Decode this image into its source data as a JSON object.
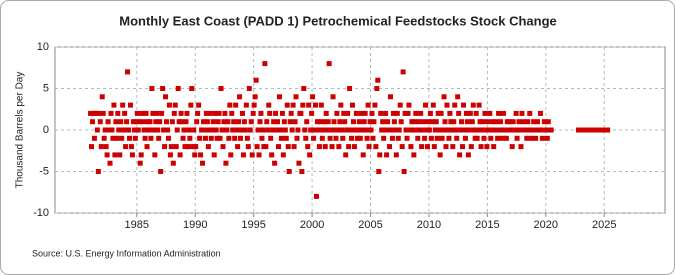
{
  "chart_data": {
    "type": "scatter",
    "title": "Monthly East Coast (PADD 1) Petrochemical Feedstocks Stock Change",
    "y_label": "Thousand Barrels per Day",
    "source": "Source: U.S. Energy Information Administration",
    "color": "#cc0000",
    "grid": true,
    "xlim": [
      1978,
      2030.2
    ],
    "xticks": [
      1985,
      1990,
      1995,
      2000,
      2005,
      2010,
      2015,
      2020,
      2025
    ],
    "ylim": [
      -10,
      10
    ],
    "yticks": [
      -10,
      -5,
      0,
      5,
      10
    ],
    "x": [
      "1981-01",
      "1981-02",
      "1981-03",
      "1981-04",
      "1981-05",
      "1981-06",
      "1981-07",
      "1981-08",
      "1981-09",
      "1981-10",
      "1981-11",
      "1981-12",
      "1982-01",
      "1982-02",
      "1982-03",
      "1982-04",
      "1982-05",
      "1982-06",
      "1982-07",
      "1982-08",
      "1982-09",
      "1982-10",
      "1982-11",
      "1982-12",
      "1983-01",
      "1983-02",
      "1983-03",
      "1983-04",
      "1983-05",
      "1983-06",
      "1983-07",
      "1983-08",
      "1983-09",
      "1983-10",
      "1983-11",
      "1983-12",
      "1984-01",
      "1984-02",
      "1984-03",
      "1984-04",
      "1984-05",
      "1984-06",
      "1984-07",
      "1984-08",
      "1984-09",
      "1984-10",
      "1984-11",
      "1984-12",
      "1985-01",
      "1985-02",
      "1985-03",
      "1985-04",
      "1985-05",
      "1985-06",
      "1985-07",
      "1985-08",
      "1985-09",
      "1985-10",
      "1985-11",
      "1985-12",
      "1986-01",
      "1986-02",
      "1986-03",
      "1986-04",
      "1986-05",
      "1986-06",
      "1986-07",
      "1986-08",
      "1986-09",
      "1986-10",
      "1986-11",
      "1986-12",
      "1987-01",
      "1987-02",
      "1987-03",
      "1987-04",
      "1987-05",
      "1987-06",
      "1987-07",
      "1987-08",
      "1987-09",
      "1987-10",
      "1987-11",
      "1987-12",
      "1988-01",
      "1988-02",
      "1988-03",
      "1988-04",
      "1988-05",
      "1988-06",
      "1988-07",
      "1988-08",
      "1988-09",
      "1988-10",
      "1988-11",
      "1988-12",
      "1989-01",
      "1989-02",
      "1989-03",
      "1989-04",
      "1989-05",
      "1989-06",
      "1989-07",
      "1989-08",
      "1989-09",
      "1989-10",
      "1989-11",
      "1989-12",
      "1990-01",
      "1990-02",
      "1990-03",
      "1990-04",
      "1990-05",
      "1990-06",
      "1990-07",
      "1990-08",
      "1990-09",
      "1990-10",
      "1990-11",
      "1990-12",
      "1991-01",
      "1991-02",
      "1991-03",
      "1991-04",
      "1991-05",
      "1991-06",
      "1991-07",
      "1991-08",
      "1991-09",
      "1991-10",
      "1991-11",
      "1991-12",
      "1992-01",
      "1992-02",
      "1992-03",
      "1992-04",
      "1992-05",
      "1992-06",
      "1992-07",
      "1992-08",
      "1992-09",
      "1992-10",
      "1992-11",
      "1992-12",
      "1993-01",
      "1993-02",
      "1993-03",
      "1993-04",
      "1993-05",
      "1993-06",
      "1993-07",
      "1993-08",
      "1993-09",
      "1993-10",
      "1993-11",
      "1993-12",
      "1994-01",
      "1994-02",
      "1994-03",
      "1994-04",
      "1994-05",
      "1994-06",
      "1994-07",
      "1994-08",
      "1994-09",
      "1994-10",
      "1994-11",
      "1994-12",
      "1995-01",
      "1995-02",
      "1995-03",
      "1995-04",
      "1995-05",
      "1995-06",
      "1995-07",
      "1995-08",
      "1995-09",
      "1995-10",
      "1995-11",
      "1995-12",
      "1996-01",
      "1996-02",
      "1996-03",
      "1996-04",
      "1996-05",
      "1996-06",
      "1996-07",
      "1996-08",
      "1996-09",
      "1996-10",
      "1996-11",
      "1996-12",
      "1997-01",
      "1997-02",
      "1997-03",
      "1997-04",
      "1997-05",
      "1997-06",
      "1997-07",
      "1997-08",
      "1997-09",
      "1997-10",
      "1997-11",
      "1997-12",
      "1998-01",
      "1998-02",
      "1998-03",
      "1998-04",
      "1998-05",
      "1998-06",
      "1998-07",
      "1998-08",
      "1998-09",
      "1998-10",
      "1998-11",
      "1998-12",
      "1999-01",
      "1999-02",
      "1999-03",
      "1999-04",
      "1999-05",
      "1999-06",
      "1999-07",
      "1999-08",
      "1999-09",
      "1999-10",
      "1999-11",
      "1999-12",
      "2000-01",
      "2000-02",
      "2000-03",
      "2000-04",
      "2000-05",
      "2000-06",
      "2000-07",
      "2000-08",
      "2000-09",
      "2000-10",
      "2000-11",
      "2000-12",
      "2001-01",
      "2001-02",
      "2001-03",
      "2001-04",
      "2001-05",
      "2001-06",
      "2001-07",
      "2001-08",
      "2001-09",
      "2001-10",
      "2001-11",
      "2001-12",
      "2002-01",
      "2002-02",
      "2002-03",
      "2002-04",
      "2002-05",
      "2002-06",
      "2002-07",
      "2002-08",
      "2002-09",
      "2002-10",
      "2002-11",
      "2002-12",
      "2003-01",
      "2003-02",
      "2003-03",
      "2003-04",
      "2003-05",
      "2003-06",
      "2003-07",
      "2003-08",
      "2003-09",
      "2003-10",
      "2003-11",
      "2003-12",
      "2004-01",
      "2004-02",
      "2004-03",
      "2004-04",
      "2004-05",
      "2004-06",
      "2004-07",
      "2004-08",
      "2004-09",
      "2004-10",
      "2004-11",
      "2004-12",
      "2005-01",
      "2005-02",
      "2005-03",
      "2005-04",
      "2005-05",
      "2005-06",
      "2005-07",
      "2005-08",
      "2005-09",
      "2005-10",
      "2005-11",
      "2005-12",
      "2006-01",
      "2006-02",
      "2006-03",
      "2006-04",
      "2006-05",
      "2006-06",
      "2006-07",
      "2006-08",
      "2006-09",
      "2006-10",
      "2006-11",
      "2006-12",
      "2007-01",
      "2007-02",
      "2007-03",
      "2007-04",
      "2007-05",
      "2007-06",
      "2007-07",
      "2007-08",
      "2007-09",
      "2007-10",
      "2007-11",
      "2007-12",
      "2008-01",
      "2008-02",
      "2008-03",
      "2008-04",
      "2008-05",
      "2008-06",
      "2008-07",
      "2008-08",
      "2008-09",
      "2008-10",
      "2008-11",
      "2008-12",
      "2009-01",
      "2009-02",
      "2009-03",
      "2009-04",
      "2009-05",
      "2009-06",
      "2009-07",
      "2009-08",
      "2009-09",
      "2009-10",
      "2009-11",
      "2009-12",
      "2010-01",
      "2010-02",
      "2010-03",
      "2010-04",
      "2010-05",
      "2010-06",
      "2010-07",
      "2010-08",
      "2010-09",
      "2010-10",
      "2010-11",
      "2010-12",
      "2011-01",
      "2011-02",
      "2011-03",
      "2011-04",
      "2011-05",
      "2011-06",
      "2011-07",
      "2011-08",
      "2011-09",
      "2011-10",
      "2011-11",
      "2011-12",
      "2012-01",
      "2012-02",
      "2012-03",
      "2012-04",
      "2012-05",
      "2012-06",
      "2012-07",
      "2012-08",
      "2012-09",
      "2012-10",
      "2012-11",
      "2012-12",
      "2013-01",
      "2013-02",
      "2013-03",
      "2013-04",
      "2013-05",
      "2013-06",
      "2013-07",
      "2013-08",
      "2013-09",
      "2013-10",
      "2013-11",
      "2013-12",
      "2014-01",
      "2014-02",
      "2014-03",
      "2014-04",
      "2014-05",
      "2014-06",
      "2014-07",
      "2014-08",
      "2014-09",
      "2014-10",
      "2014-11",
      "2014-12",
      "2015-01",
      "2015-02",
      "2015-03",
      "2015-04",
      "2015-05",
      "2015-06",
      "2015-07",
      "2015-08",
      "2015-09",
      "2015-10",
      "2015-11",
      "2015-12",
      "2016-01",
      "2016-02",
      "2016-03",
      "2016-04",
      "2016-05",
      "2016-06",
      "2016-07",
      "2016-08",
      "2016-09",
      "2016-10",
      "2016-11",
      "2016-12",
      "2017-01",
      "2017-02",
      "2017-03",
      "2017-04",
      "2017-05",
      "2017-06",
      "2017-07",
      "2017-08",
      "2017-09",
      "2017-10",
      "2017-11",
      "2017-12",
      "2018-01",
      "2018-02",
      "2018-03",
      "2018-04",
      "2018-05",
      "2018-06",
      "2018-07",
      "2018-08",
      "2018-09",
      "2018-10",
      "2018-11",
      "2018-12",
      "2019-01",
      "2019-02",
      "2019-03",
      "2019-04",
      "2019-05",
      "2019-06",
      "2019-07",
      "2019-08",
      "2019-09",
      "2019-10",
      "2019-11",
      "2019-12",
      "2020-01",
      "2020-02",
      "2020-03",
      "2020-04",
      "2020-05",
      "2020-06",
      "2022-10",
      "2022-11",
      "2022-12",
      "2023-01",
      "2023-02",
      "2023-03",
      "2023-04",
      "2023-05",
      "2023-06",
      "2023-07",
      "2023-08",
      "2023-09",
      "2023-10",
      "2023-11",
      "2023-12",
      "2024-01",
      "2024-02",
      "2024-03",
      "2024-04",
      "2024-05",
      "2024-06",
      "2024-07",
      "2024-08",
      "2024-09",
      "2024-10",
      "2024-11",
      "2024-12",
      "2025-01",
      "2025-02",
      "2025-03",
      "2025-04"
    ],
    "values": [
      2,
      -2,
      1,
      2,
      -1,
      2,
      2,
      0,
      -5,
      2,
      1,
      -2,
      4,
      2,
      -1,
      0,
      -2,
      -3,
      1,
      0,
      -4,
      2,
      0,
      -1,
      3,
      -3,
      1,
      -1,
      2,
      0,
      -3,
      1,
      -1,
      3,
      0,
      2,
      -2,
      1,
      7,
      0,
      -1,
      3,
      -2,
      -3,
      1,
      0,
      -1,
      1,
      2,
      0,
      1,
      -4,
      -3,
      2,
      1,
      0,
      -1,
      2,
      -2,
      1,
      0,
      1,
      -1,
      5,
      2,
      0,
      -3,
      1,
      2,
      0,
      -1,
      1,
      -5,
      2,
      5,
      0,
      -2,
      4,
      1,
      0,
      -1,
      3,
      -3,
      -2,
      1,
      -4,
      2,
      3,
      -2,
      0,
      5,
      1,
      -3,
      2,
      1,
      -1,
      0,
      -2,
      1,
      2,
      -2,
      0,
      -1,
      3,
      5,
      -2,
      0,
      -3,
      -2,
      1,
      2,
      3,
      -1,
      -3,
      0,
      -4,
      1,
      0,
      -1,
      2,
      1,
      -2,
      0,
      2,
      -1,
      0,
      1,
      -3,
      2,
      0,
      -1,
      1,
      2,
      -1,
      5,
      0,
      -2,
      1,
      2,
      -4,
      0,
      1,
      -1,
      3,
      -3,
      2,
      0,
      1,
      -1,
      3,
      0,
      -2,
      1,
      4,
      -1,
      0,
      2,
      -3,
      1,
      0,
      3,
      -1,
      -2,
      5,
      0,
      1,
      -3,
      2,
      3,
      4,
      6,
      -2,
      0,
      -3,
      1,
      2,
      -1,
      0,
      -2,
      8,
      -2,
      1,
      0,
      3,
      2,
      -1,
      -3,
      0,
      1,
      -4,
      2,
      0,
      1,
      -2,
      4,
      0,
      -1,
      2,
      -3,
      1,
      0,
      -1,
      3,
      -2,
      -5,
      1,
      2,
      0,
      3,
      -2,
      1,
      4,
      -1,
      0,
      -4,
      2,
      2,
      -5,
      3,
      5,
      0,
      -1,
      1,
      -2,
      3,
      -3,
      0,
      2,
      4,
      -1,
      0,
      3,
      -8,
      1,
      0,
      -2,
      1,
      3,
      -1,
      0,
      1,
      -2,
      2,
      0,
      1,
      8,
      -1,
      0,
      -2,
      4,
      1,
      0,
      -1,
      2,
      0,
      -2,
      1,
      3,
      0,
      -1,
      2,
      1,
      -3,
      0,
      2,
      -2,
      5,
      0,
      -1,
      3,
      1,
      -2,
      0,
      2,
      -1,
      0,
      1,
      -1,
      2,
      0,
      -3,
      1,
      2,
      0,
      -1,
      3,
      -2,
      1,
      0,
      2,
      -1,
      1,
      3,
      -2,
      5,
      6,
      -5,
      -3,
      2,
      0,
      1,
      -1,
      0,
      2,
      -3,
      1,
      0,
      -2,
      4,
      0,
      -1,
      2,
      1,
      0,
      -3,
      2,
      -1,
      0,
      3,
      1,
      -2,
      7,
      -5,
      2,
      0,
      -1,
      2,
      3,
      0,
      -2,
      1,
      0,
      -3,
      1,
      2,
      0,
      -1,
      1,
      0,
      2,
      -2,
      0,
      1,
      -1,
      3,
      0,
      -2,
      1,
      0,
      2,
      -1,
      1,
      3,
      -2,
      0,
      1,
      -1,
      2,
      0,
      -3,
      2,
      -1,
      0,
      4,
      1,
      -2,
      3,
      0,
      -1,
      2,
      1,
      0,
      -2,
      1,
      3,
      0,
      -1,
      4,
      2,
      -3,
      0,
      1,
      -2,
      3,
      0,
      -1,
      2,
      1,
      -3,
      0,
      2,
      -2,
      1,
      3,
      0,
      -1,
      2,
      -1,
      0,
      3,
      1,
      -2,
      0,
      1,
      -1,
      2,
      0,
      -2,
      1,
      0,
      2,
      -1,
      0,
      1,
      -2,
      0,
      1,
      0,
      -1,
      2,
      0,
      1,
      0,
      -1,
      2,
      0,
      0,
      -1,
      1,
      0,
      1,
      0,
      0,
      -2,
      1,
      0,
      0,
      2,
      -1,
      0,
      1,
      0,
      -2,
      2,
      0,
      1,
      0,
      0,
      -1,
      1,
      0,
      2,
      0,
      -1,
      0,
      1,
      0,
      -1,
      0,
      1,
      0,
      0,
      2,
      0,
      -1,
      0,
      1,
      0,
      0,
      -1,
      1,
      0,
      0,
      0,
      0,
      0,
      0,
      0,
      0,
      0,
      0,
      0,
      0,
      0,
      0,
      0,
      0,
      0,
      0,
      0,
      0,
      0,
      0,
      0,
      0,
      0,
      0,
      0,
      0,
      0,
      0,
      0,
      0,
      0,
      0
    ]
  }
}
